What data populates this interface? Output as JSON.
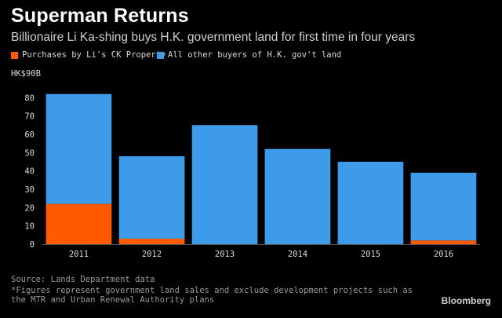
{
  "header": {
    "title": "Superman Returns",
    "subtitle": "Billionaire Li Ka-shing buys H.K. government land for first time in four years"
  },
  "legend": [
    {
      "label": "Purchases by Li's CK Property",
      "color": "#ff5a00"
    },
    {
      "label": "All other buyers of H.K. gov't land",
      "color": "#3d9be9"
    }
  ],
  "footer": {
    "source": "Source: Lands Department data",
    "footnote": "*Figures represent government land sales and exclude development projects such as the MTR and Urban Renewal Authority plans",
    "brand": "Bloomberg"
  },
  "chart_data": {
    "type": "bar",
    "stacked": true,
    "title": "Superman Returns",
    "subtitle": "Billionaire Li Ka-shing buys H.K. government land for first time in four years",
    "unit_label": "HK$90B",
    "categories": [
      "2011",
      "2012",
      "2013",
      "2014",
      "2015",
      "2016"
    ],
    "series": [
      {
        "name": "Purchases by Li's CK Property",
        "color": "#ff5a00",
        "values": [
          22,
          3,
          0,
          0,
          0,
          2
        ]
      },
      {
        "name": "All other buyers of H.K. gov't land",
        "color": "#3d9be9",
        "values": [
          60,
          45,
          65,
          52,
          45,
          37
        ]
      }
    ],
    "yticks": [
      0,
      10,
      20,
      30,
      40,
      50,
      60,
      70,
      80
    ],
    "ylim": [
      0,
      90
    ],
    "grid": false,
    "legend_position": "top-left"
  }
}
